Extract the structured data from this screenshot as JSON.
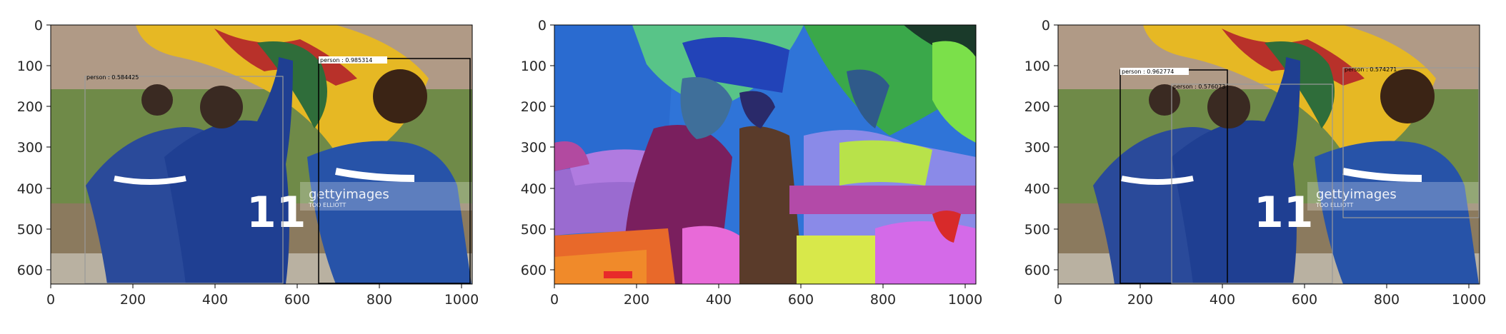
{
  "figure": {
    "panels": [
      {
        "id": "detections-1",
        "x_ticks": [
          "0",
          "200",
          "400",
          "600",
          "800",
          "1000"
        ],
        "y_ticks": [
          "0",
          "100",
          "200",
          "300",
          "400",
          "500",
          "600"
        ],
        "detections": [
          {
            "label": "person : 0.985314",
            "color": "#000000"
          },
          {
            "label": "person : 0.584425",
            "color": "#9a9a9a"
          }
        ],
        "watermark": {
          "main": "gettyimages",
          "sub": "TOO ELLIOTT"
        }
      },
      {
        "id": "segmentation",
        "x_ticks": [
          "0",
          "200",
          "400",
          "600",
          "800",
          "1000"
        ],
        "y_ticks": [
          "0",
          "100",
          "200",
          "300",
          "400",
          "500",
          "600"
        ]
      },
      {
        "id": "detections-2",
        "x_ticks": [
          "0",
          "200",
          "400",
          "600",
          "800",
          "1000"
        ],
        "y_ticks": [
          "0",
          "100",
          "200",
          "300",
          "400",
          "500",
          "600"
        ],
        "detections": [
          {
            "label": "person : 0.962774",
            "color": "#000000"
          },
          {
            "label": "person : 0.574271",
            "color": "#9a9a9a"
          },
          {
            "label": "person : 0.576073",
            "color": "#9a9a9a"
          }
        ],
        "watermark": {
          "main": "gettyimages",
          "sub": "TOO ELLIOTT"
        }
      }
    ]
  }
}
